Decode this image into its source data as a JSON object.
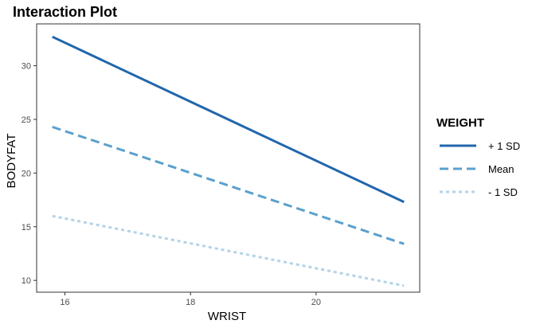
{
  "chart_data": {
    "type": "line",
    "title": "Interaction Plot",
    "xlabel": "WRIST",
    "ylabel": "BODYFAT",
    "xlim": [
      15.55,
      21.65
    ],
    "ylim": [
      8.9,
      33.9
    ],
    "xticks": [
      16,
      18,
      20
    ],
    "yticks": [
      10,
      15,
      20,
      25,
      30
    ],
    "grid": false,
    "legend": {
      "title": "WEIGHT",
      "position": "right"
    },
    "x": [
      15.8,
      21.4
    ],
    "series": [
      {
        "name": "+ 1 SD",
        "values": [
          32.7,
          17.3
        ],
        "color": "#2166ac",
        "dash": "solid"
      },
      {
        "name": "Mean",
        "values": [
          24.3,
          13.4
        ],
        "color": "#5aa0cd",
        "dash": "dashed"
      },
      {
        "name": "- 1 SD",
        "values": [
          16.0,
          9.5
        ],
        "color": "#b3d3e8",
        "dash": "dotted"
      }
    ]
  }
}
